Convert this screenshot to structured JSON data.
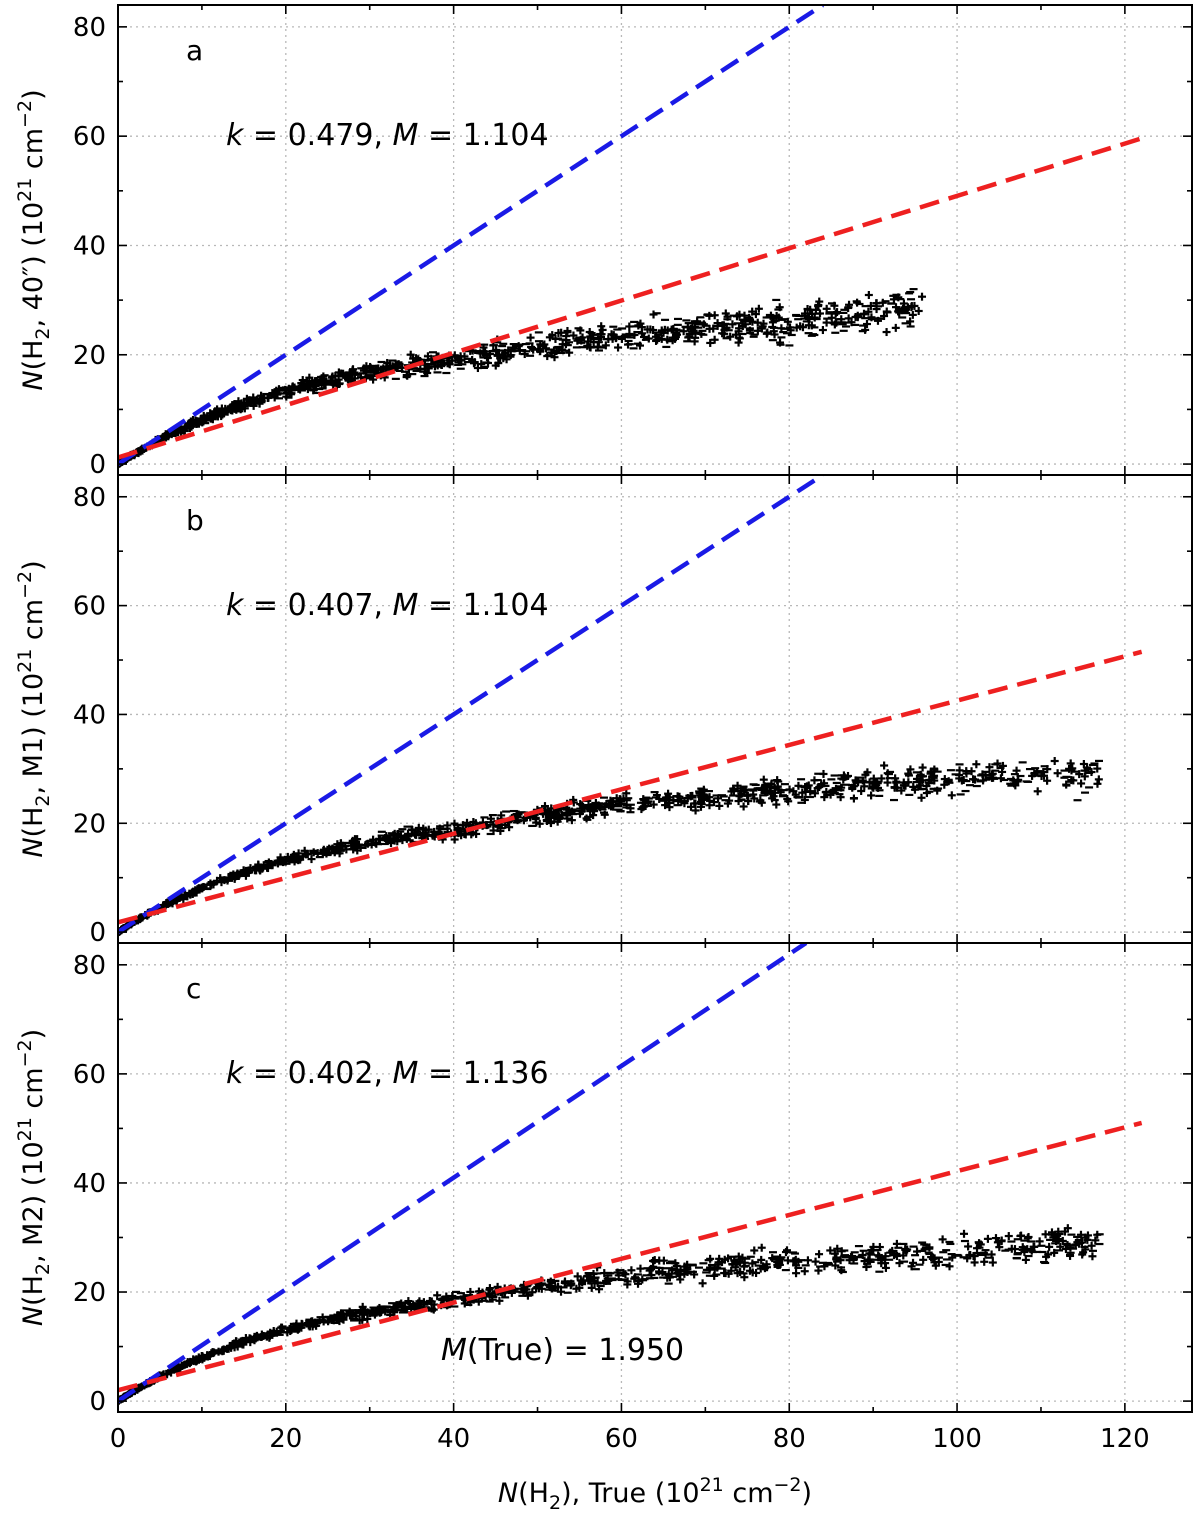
{
  "chart_data": [
    {
      "type": "scatter",
      "panel_label": "a",
      "annotation": "k = 0.479,  M = 1.104",
      "ylabel": "N(H2, 40″) (10^21 cm^-2)",
      "xlim": [
        0,
        128
      ],
      "ylim": [
        -2,
        84
      ],
      "xticks": [
        0,
        20,
        40,
        60,
        80,
        100,
        120
      ],
      "yticks": [
        0,
        20,
        40,
        60,
        80
      ],
      "grid": true,
      "lines": [
        {
          "name": "",
          "color": "#1a1ae6",
          "style": "dashed",
          "x": [
            0,
            84
          ],
          "y": [
            0,
            84
          ]
        },
        {
          "name": "",
          "color": "#ee2020",
          "style": "dashed",
          "x": [
            0,
            122
          ],
          "y": [
            1.2,
            59.6
          ]
        }
      ],
      "scatter_shape": {
        "x_min": 0,
        "x_max": 96,
        "y_cap": 30,
        "ratio_low": 1.0,
        "ratio_high": 0.75,
        "band_near_origin": 0.08,
        "band_far": 5.5,
        "y_end": 28.5
      }
    },
    {
      "type": "scatter",
      "panel_label": "b",
      "annotation": "k = 0.407,  M = 1.104",
      "ylabel": "N(H2, M1) (10^21 cm^-2)",
      "xlim": [
        0,
        128
      ],
      "ylim": [
        -2,
        84
      ],
      "xticks": [
        0,
        20,
        40,
        60,
        80,
        100,
        120
      ],
      "yticks": [
        0,
        20,
        40,
        60,
        80
      ],
      "grid": true,
      "lines": [
        {
          "name": "",
          "color": "#1a1ae6",
          "style": "dashed",
          "x": [
            0,
            84
          ],
          "y": [
            0,
            84
          ]
        },
        {
          "name": "",
          "color": "#ee2020",
          "style": "dashed",
          "x": [
            0,
            122
          ],
          "y": [
            1.8,
            51.5
          ]
        }
      ],
      "scatter_shape": {
        "x_min": 0,
        "x_max": 117,
        "y_cap": 31,
        "ratio_low": 1.0,
        "ratio_high": 0.72,
        "band_near_origin": 0.06,
        "band_far": 5.0,
        "y_end": 28.5
      }
    },
    {
      "type": "scatter",
      "panel_label": "c",
      "annotation": "k = 0.402,  M = 1.136",
      "annotation2": "M(True) = 1.950",
      "ylabel": "N(H2, M2) (10^21 cm^-2)",
      "xlabel": "N(H2),  True (10^21 cm^-2)",
      "xlim": [
        0,
        128
      ],
      "ylim": [
        -2,
        84
      ],
      "xticks": [
        0,
        20,
        40,
        60,
        80,
        100,
        120
      ],
      "yticks": [
        0,
        20,
        40,
        60,
        80
      ],
      "grid": true,
      "lines": [
        {
          "name": "",
          "color": "#1a1ae6",
          "style": "dashed",
          "x": [
            0,
            82
          ],
          "y": [
            0,
            84
          ]
        },
        {
          "name": "",
          "color": "#ee2020",
          "style": "dashed",
          "x": [
            0,
            122
          ],
          "y": [
            2.0,
            51.0
          ]
        }
      ],
      "scatter_shape": {
        "x_min": 0,
        "x_max": 117,
        "y_cap": 30,
        "ratio_low": 1.0,
        "ratio_high": 0.72,
        "band_near_origin": 0.05,
        "band_far": 4.5,
        "y_end": 29.0
      }
    }
  ]
}
